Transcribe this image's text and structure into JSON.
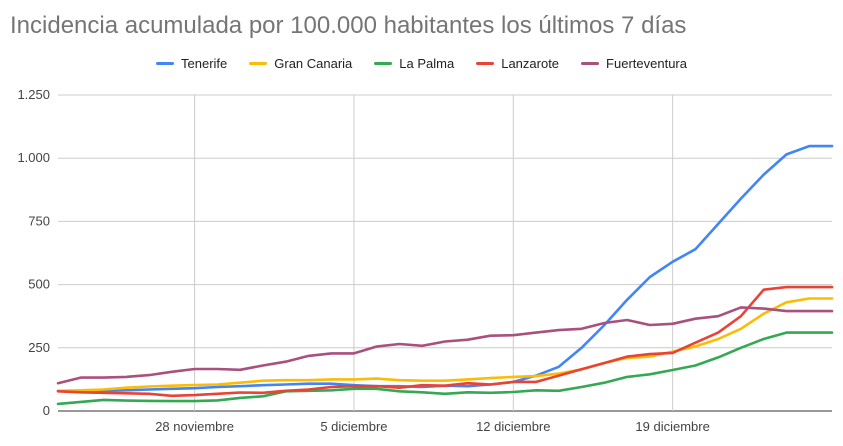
{
  "chart_data": {
    "type": "line",
    "title": "Incidencia acumulada por 100.000 habitantes los últimos 7 días",
    "xlabel": "",
    "ylabel": "",
    "ylim": [
      0,
      1250
    ],
    "y_ticks": [
      0,
      250,
      500,
      750,
      1000,
      1250
    ],
    "y_tick_labels": [
      "0",
      "250",
      "500",
      "750",
      "1.000",
      "1.250"
    ],
    "x": [
      "22 nov",
      "23 nov",
      "24 nov",
      "25 nov",
      "26 nov",
      "27 nov",
      "28 nov",
      "29 nov",
      "30 nov",
      "1 dic",
      "2 dic",
      "3 dic",
      "4 dic",
      "5 dic",
      "6 dic",
      "7 dic",
      "8 dic",
      "9 dic",
      "10 dic",
      "11 dic",
      "12 dic",
      "13 dic",
      "14 dic",
      "15 dic",
      "16 dic",
      "17 dic",
      "18 dic",
      "19 dic",
      "20 dic",
      "21 dic",
      "22 dic",
      "23 dic",
      "24 dic",
      "25 dic",
      "26 dic"
    ],
    "x_tick_labels": [
      {
        "index": 6,
        "label": "28 noviembre"
      },
      {
        "index": 13,
        "label": "5 diciembre"
      },
      {
        "index": 20,
        "label": "12 diciembre"
      },
      {
        "index": 27,
        "label": "19 diciembre"
      }
    ],
    "grid": true,
    "legend_position": "top",
    "series": [
      {
        "name": "Tenerife",
        "color": "#4285f4",
        "values": [
          80,
          78,
          80,
          82,
          85,
          88,
          90,
          95,
          98,
          102,
          105,
          108,
          108,
          102,
          98,
          98,
          95,
          100,
          98,
          105,
          115,
          140,
          175,
          250,
          340,
          440,
          530,
          590,
          640,
          740,
          840,
          935,
          1015,
          1048,
          1048
        ]
      },
      {
        "name": "Gran Canaria",
        "color": "#fbbc04",
        "values": [
          80,
          82,
          85,
          92,
          97,
          100,
          103,
          105,
          112,
          120,
          122,
          122,
          125,
          125,
          128,
          122,
          120,
          120,
          125,
          130,
          135,
          138,
          148,
          165,
          190,
          210,
          215,
          235,
          255,
          285,
          325,
          385,
          430,
          445,
          445
        ]
      },
      {
        "name": "La Palma",
        "color": "#34a853",
        "values": [
          28,
          36,
          44,
          41,
          40,
          39,
          39,
          42,
          52,
          58,
          78,
          80,
          82,
          88,
          88,
          78,
          74,
          68,
          74,
          72,
          75,
          82,
          80,
          95,
          112,
          135,
          145,
          162,
          180,
          212,
          250,
          285,
          310,
          310,
          310
        ]
      },
      {
        "name": "Lanzarote",
        "color": "#ea4335",
        "values": [
          78,
          74,
          72,
          70,
          68,
          60,
          63,
          68,
          73,
          72,
          80,
          85,
          95,
          98,
          98,
          92,
          102,
          100,
          110,
          105,
          115,
          115,
          140,
          165,
          190,
          215,
          225,
          230,
          270,
          310,
          375,
          480,
          490,
          490,
          490
        ]
      },
      {
        "name": "Fuerteventura",
        "color": "#a8507e",
        "values": [
          110,
          132,
          132,
          135,
          142,
          155,
          166,
          166,
          163,
          180,
          195,
          218,
          228,
          228,
          255,
          265,
          258,
          275,
          282,
          298,
          300,
          310,
          320,
          325,
          348,
          360,
          340,
          345,
          365,
          375,
          410,
          405,
          395,
          395,
          395
        ]
      }
    ]
  }
}
